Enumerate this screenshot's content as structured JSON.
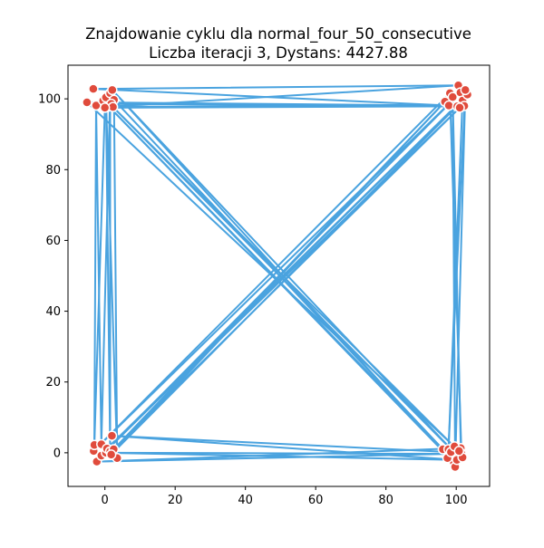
{
  "chart_data": {
    "type": "line",
    "title_lines": [
      "Znajdowanie cyklu dla normal_four_50_consecutive",
      "Liczba iteracji 3, Dystans: 4427.88"
    ],
    "xlabel": "",
    "ylabel": "",
    "xlim": [
      -10.5,
      109.5
    ],
    "ylim": [
      -9.5,
      109.5
    ],
    "xticks": [
      0,
      20,
      40,
      60,
      80,
      100
    ],
    "yticks": [
      0,
      20,
      40,
      60,
      80,
      100
    ],
    "grid": false,
    "legend": "none",
    "colors": {
      "path": "#4aa3df",
      "point_fill": "#e04b3c",
      "point_edge": "#ffffff",
      "axes": "#000000"
    },
    "points": [
      {
        "x": -5.1,
        "y": 99.0
      },
      {
        "x": -3.3,
        "y": 102.8
      },
      {
        "x": -2.5,
        "y": 98.1
      },
      {
        "x": -0.5,
        "y": 99.5
      },
      {
        "x": 0.3,
        "y": 100.4
      },
      {
        "x": 1.0,
        "y": 97.8
      },
      {
        "x": 1.5,
        "y": 101.6
      },
      {
        "x": 2.1,
        "y": 102.5
      },
      {
        "x": 2.6,
        "y": 99.7
      },
      {
        "x": 1.8,
        "y": 98.6
      },
      {
        "x": 2.3,
        "y": 97.7
      },
      {
        "x": 0.0,
        "y": 97.5
      },
      {
        "x": 96.8,
        "y": 99.2
      },
      {
        "x": 97.9,
        "y": 98.1
      },
      {
        "x": 98.2,
        "y": 101.6
      },
      {
        "x": 99.0,
        "y": 100.5
      },
      {
        "x": 100.6,
        "y": 103.8
      },
      {
        "x": 101.2,
        "y": 101.8
      },
      {
        "x": 101.8,
        "y": 99.5
      },
      {
        "x": 102.3,
        "y": 98.0
      },
      {
        "x": 103.2,
        "y": 101.2
      },
      {
        "x": 102.6,
        "y": 102.5
      },
      {
        "x": 100.3,
        "y": 97.9
      },
      {
        "x": 101.0,
        "y": 97.5
      },
      {
        "x": -3.2,
        "y": 0.5
      },
      {
        "x": -3.0,
        "y": 2.2
      },
      {
        "x": -2.3,
        "y": -2.5
      },
      {
        "x": -1.0,
        "y": -0.8
      },
      {
        "x": -1.0,
        "y": 2.4
      },
      {
        "x": 0.3,
        "y": 0.0
      },
      {
        "x": 0.6,
        "y": 1.2
      },
      {
        "x": 1.5,
        "y": 0.4
      },
      {
        "x": 2.0,
        "y": 4.8
      },
      {
        "x": 2.5,
        "y": 1.0
      },
      {
        "x": 3.5,
        "y": -1.5
      },
      {
        "x": 1.8,
        "y": -0.5
      },
      {
        "x": 96.2,
        "y": 1.0
      },
      {
        "x": 97.8,
        "y": 1.0
      },
      {
        "x": 99.3,
        "y": -2.7
      },
      {
        "x": 99.7,
        "y": -4.0
      },
      {
        "x": 100.5,
        "y": -1.0
      },
      {
        "x": 101.3,
        "y": 1.3
      },
      {
        "x": 101.5,
        "y": -0.3
      },
      {
        "x": 98.9,
        "y": -0.3
      },
      {
        "x": 100.2,
        "y": -2.0
      },
      {
        "x": 97.5,
        "y": -1.5
      },
      {
        "x": 98.5,
        "y": 0.2
      },
      {
        "x": 101.8,
        "y": -1.3
      },
      {
        "x": 99.5,
        "y": 1.8
      },
      {
        "x": 100.8,
        "y": 0.5
      }
    ],
    "cycle": [
      0,
      13,
      1,
      16,
      5,
      19,
      9,
      22,
      11,
      25,
      2,
      28,
      6,
      31,
      4,
      34,
      8,
      36,
      3,
      38,
      7,
      40,
      10,
      42,
      14,
      24,
      17,
      27,
      20,
      30,
      23,
      33,
      12,
      35,
      18,
      37,
      21,
      39,
      15,
      41,
      26,
      43,
      29,
      44,
      32,
      46,
      45,
      47,
      48,
      49
    ]
  }
}
